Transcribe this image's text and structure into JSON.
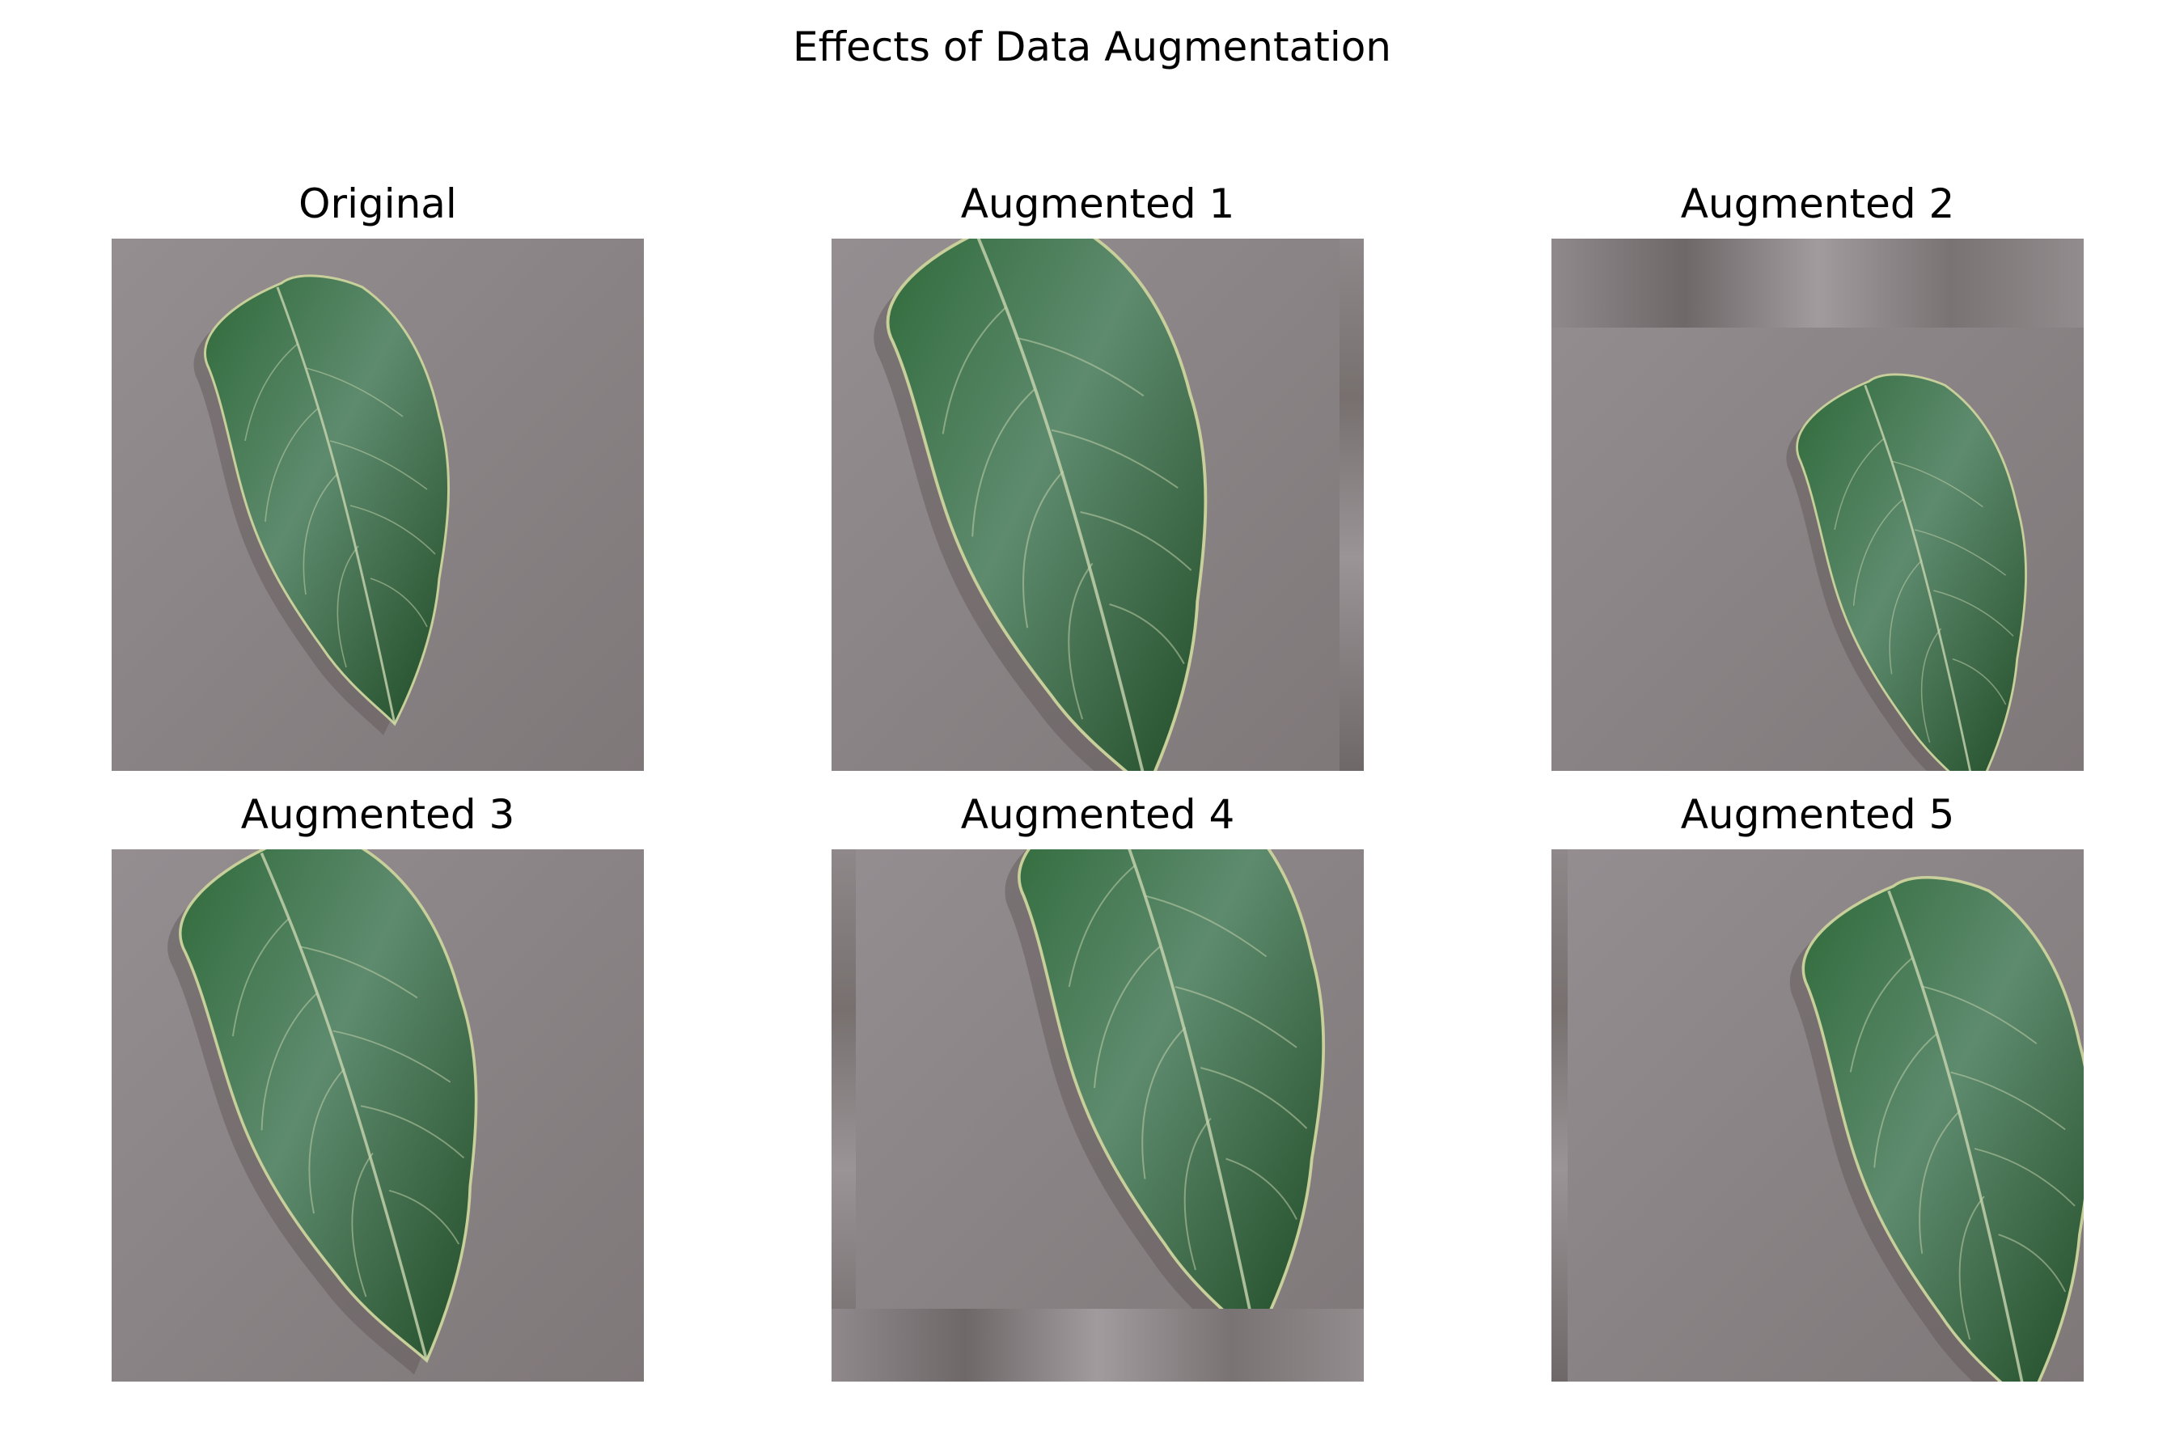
{
  "figure": {
    "title": "Effects of Data Augmentation",
    "panels": [
      {
        "label": "Original"
      },
      {
        "label": "Augmented 1"
      },
      {
        "label": "Augmented 2"
      },
      {
        "label": "Augmented 3"
      },
      {
        "label": "Augmented 4"
      },
      {
        "label": "Augmented 5"
      }
    ]
  },
  "colors": {
    "background": "#8c8588",
    "leaf_dark": "#1f4a25",
    "leaf_mid": "#2f6a3a",
    "leaf_light": "#5e8b6e",
    "vein": "#c9d6b0",
    "edge": "#c8cf9a"
  }
}
